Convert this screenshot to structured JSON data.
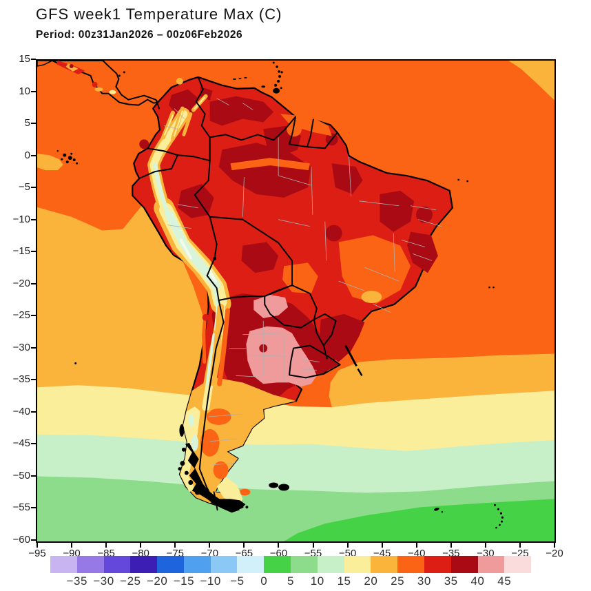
{
  "header": {
    "title": "GFS week1 Temperature Max (C)",
    "subtitle": "Period: 00z31Jan2026 – 00z06Feb2026"
  },
  "axes": {
    "x": {
      "labels": [
        "−95",
        "−90",
        "−85",
        "−80",
        "−75",
        "−70",
        "−65",
        "−60",
        "−55",
        "−50",
        "−45",
        "−40",
        "−35",
        "−30",
        "−25",
        "−20"
      ]
    },
    "y": {
      "labels": [
        "15",
        "10",
        "5",
        "0",
        "−5",
        "−10",
        "−15",
        "−20",
        "−25",
        "−30",
        "−35",
        "−40",
        "−45",
        "−50",
        "−55",
        "−60"
      ]
    }
  },
  "colorbar": {
    "colors": [
      "#c8b4f0",
      "#9678e6",
      "#6448dc",
      "#3c1eb4",
      "#1e64dc",
      "#50a0f0",
      "#8cc8f5",
      "#d2f0fa",
      "#46d246",
      "#8cdc8c",
      "#c8f0c8",
      "#faee9b",
      "#fab43c",
      "#fa6414",
      "#dc1e14",
      "#aa0a14",
      "#f09b9b",
      "#fadcdc"
    ],
    "labels": [
      "−35",
      "−30",
      "−25",
      "−20",
      "−15",
      "−10",
      "−5",
      "0",
      "5",
      "10",
      "15",
      "20",
      "25",
      "30",
      "35",
      "40",
      "45"
    ]
  },
  "palette": {
    "orange_25_30": "#fa6414",
    "amber_20_25": "#fab43c",
    "yellow_15_20": "#faee9b",
    "green_10_15": "#c8f0c8",
    "green_5_10": "#8cdc8c",
    "green_0_5": "#46d246",
    "red_30_35": "#dc1e14",
    "darkred_35_40": "#aa0a14",
    "pink_40_45": "#f09b9b",
    "palepink_over45": "#fadcdc",
    "mint_high_andes": "#d8f5dc",
    "white_peak": "#f2faee",
    "coast_black": "#000000",
    "admin_gray": "#b0b0b0"
  },
  "chart_data": {
    "type": "heatmap",
    "subtype": "filled_contour_map",
    "model": "GFS",
    "variable": "Temperature Max",
    "units": "C",
    "title": "GFS week1 Temperature Max (C)",
    "period": "00z31Jan2026 – 00z06Feb2026",
    "lon_range": [
      -95,
      -20
    ],
    "lat_range": [
      -60,
      15
    ],
    "x_ticks": [
      -95,
      -90,
      -85,
      -80,
      -75,
      -70,
      -65,
      -60,
      -55,
      -50,
      -45,
      -40,
      -35,
      -30,
      -25,
      -20
    ],
    "y_ticks": [
      15,
      10,
      5,
      0,
      -5,
      -10,
      -15,
      -20,
      -25,
      -30,
      -35,
      -40,
      -45,
      -50,
      -55,
      -60
    ],
    "contour_levels": [
      -35,
      -30,
      -25,
      -20,
      -15,
      -10,
      -5,
      0,
      5,
      10,
      15,
      20,
      25,
      30,
      35,
      40,
      45
    ],
    "legend_position": "bottom",
    "grid": false,
    "region_values": [
      {
        "region": "Tropical Pacific and Atlantic oceans north of 10S",
        "value_c": "25–30"
      },
      {
        "region": "Equatorial Pacific cold patch near Galapagos",
        "value_c": "20–25"
      },
      {
        "region": "Peru–Chile coastal waters (Humboldt current)",
        "value_c": "20–25"
      },
      {
        "region": "Amazon basin interior (Brazil, Colombia, Venezuela)",
        "value_c": "30–40"
      },
      {
        "region": "Venezuela llanos / Guyana highlands patches",
        "value_c": "35–40"
      },
      {
        "region": "Northeast Brazil interior (Piaui/Bahia)",
        "value_c": "35–40"
      },
      {
        "region": "East-central Brazil (Minas/Goias)",
        "value_c": "25–30"
      },
      {
        "region": "Andes cordillera (Ecuador–Peru–Bolivia altiplano)",
        "value_c": "5–20"
      },
      {
        "region": "Gran Chaco / Paraguay / northern Argentina",
        "value_c": "35–40"
      },
      {
        "region": "Central Argentina hotspot core",
        "value_c": "40–45"
      },
      {
        "region": "Paraguay hotspot core",
        "value_c": "40–45"
      },
      {
        "region": "Uruguay and far southern Brazil",
        "value_c": "35–40"
      },
      {
        "region": "Patagonia (Argentina south of 40S)",
        "value_c": "15–25"
      },
      {
        "region": "Southern Chile fjords",
        "value_c": "10–15"
      },
      {
        "region": "South Atlantic 35S–45S",
        "value_c": "15–20"
      },
      {
        "region": "South Atlantic 45S–52S",
        "value_c": "10–15"
      },
      {
        "region": "Southern Ocean 52S–57S",
        "value_c": "5–10"
      },
      {
        "region": "Southern Ocean near 60S (southeast corner)",
        "value_c": "0–5"
      }
    ]
  }
}
